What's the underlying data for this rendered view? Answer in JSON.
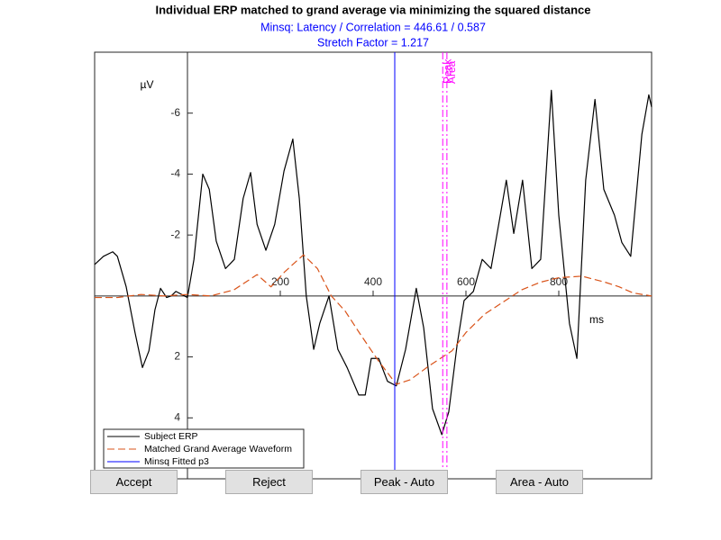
{
  "chart_data": {
    "type": "line",
    "title": "Individual ERP matched to grand average via minimizing the squared distance",
    "subtitle": [
      "Minsq: Latency / Correlation = 446.61 / 0.587",
      "Stretch Factor = 1.217"
    ],
    "xlabel": "ms",
    "ylabel": "µV",
    "xlim": [
      -200,
      1000
    ],
    "ylim": [
      -8,
      6
    ],
    "y_direction": "reverse",
    "xticks": [
      200,
      400,
      600,
      800
    ],
    "yticks": [
      -6,
      -4,
      -2,
      2,
      4
    ],
    "grid": false,
    "legend": "southwest",
    "series": [
      {
        "name": "Subject ERP",
        "color": "#000000",
        "style": "solid",
        "x": [
          -200,
          -181,
          -161,
          -151,
          -132,
          -113,
          -97,
          -83,
          -70,
          -58,
          -45,
          -35,
          -25,
          0,
          14,
          33,
          47,
          62,
          82,
          101,
          120,
          136,
          150,
          169,
          188,
          208,
          227,
          241,
          256,
          272,
          285,
          305,
          324,
          344,
          369,
          383,
          396,
          412,
          431,
          450,
          470,
          493,
          509,
          528,
          548,
          563,
          581,
          596,
          616,
          635,
          654,
          674,
          687,
          703,
          722,
          742,
          761,
          784,
          800,
          823,
          839,
          858,
          878,
          897,
          920,
          936,
          955,
          979,
          994,
          1000
        ],
        "values": [
          -1.03,
          -1.3,
          -1.45,
          -1.3,
          -0.3,
          1.2,
          2.35,
          1.8,
          0.45,
          -0.25,
          0.05,
          0,
          -0.15,
          0.05,
          -1.2,
          -4.0,
          -3.5,
          -1.8,
          -0.9,
          -1.2,
          -3.2,
          -4.05,
          -2.35,
          -1.5,
          -2.35,
          -4.1,
          -5.15,
          -3.2,
          0,
          1.75,
          0.9,
          0,
          1.75,
          2.35,
          3.25,
          3.25,
          2.05,
          2.05,
          2.8,
          2.95,
          1.75,
          -0.25,
          1.05,
          3.7,
          4.55,
          3.8,
          1.6,
          0.15,
          -0.15,
          -1.2,
          -0.9,
          -2.65,
          -3.8,
          -2.05,
          -3.8,
          -0.9,
          -1.2,
          -6.75,
          -2.65,
          0.9,
          2.05,
          -3.8,
          -6.45,
          -3.5,
          -2.65,
          -1.75,
          -1.3,
          -5.3,
          -6.6,
          -6.2
        ]
      },
      {
        "name": "Matched Grand Average Waveform",
        "color": "#d95319",
        "style": "dashed",
        "x": [
          -200,
          -150,
          -100,
          -50,
          0,
          50,
          100,
          150,
          180,
          210,
          250,
          280,
          310,
          340,
          370,
          410,
          450,
          480,
          520,
          570,
          600,
          640,
          680,
          720,
          760,
          800,
          850,
          900,
          930,
          960,
          1000
        ],
        "values": [
          0.05,
          0.05,
          -0.05,
          0,
          -0.05,
          0,
          -0.2,
          -0.7,
          -0.3,
          -0.8,
          -1.35,
          -0.9,
          0,
          0.5,
          1.2,
          2.1,
          2.9,
          2.75,
          2.3,
          1.8,
          1.2,
          0.6,
          0.2,
          -0.2,
          -0.45,
          -0.6,
          -0.65,
          -0.45,
          -0.3,
          -0.1,
          0
        ]
      },
      {
        "name": "Minsq Fitted p3",
        "color": "#0000ff",
        "style": "vline",
        "xline": 446.61
      }
    ],
    "markers": [
      {
        "label": "Peak",
        "x": 550
      },
      {
        "label": "Area",
        "x": 559
      }
    ],
    "marker_color": "#ff00ff"
  },
  "buttons": [
    "Accept",
    "Reject",
    "Peak - Auto",
    "Area - Auto"
  ]
}
